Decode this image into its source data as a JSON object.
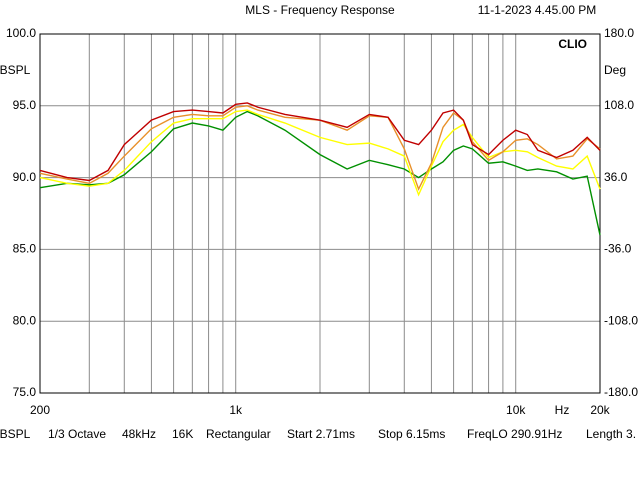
{
  "chart_data": {
    "type": "line",
    "title": "MLS - Frequency Response",
    "timestamp": "11-1-2023 4.45.00 PM",
    "brand": "CLIO",
    "ylabel": "dBSPL",
    "y2label": "Deg",
    "xlabel": "Hz",
    "xlog": true,
    "grid": true,
    "xlim": [
      200,
      20000
    ],
    "xticks": [
      200,
      {
        "value": 1000,
        "label": "1k"
      },
      {
        "value": 10000,
        "label": "10k"
      },
      {
        "value": 20000,
        "label": "20k"
      }
    ],
    "xgrid": [
      200,
      300,
      400,
      500,
      600,
      700,
      800,
      900,
      1000,
      2000,
      3000,
      4000,
      5000,
      6000,
      7000,
      8000,
      9000,
      10000,
      20000
    ],
    "ylim": [
      75,
      100
    ],
    "yticks": [
      {
        "value": 100,
        "label": "100.0"
      },
      {
        "value": 95,
        "label": "95.0"
      },
      {
        "value": 90,
        "label": "90.0"
      },
      {
        "value": 85,
        "label": "85.0"
      },
      {
        "value": 80,
        "label": "80.0"
      },
      {
        "value": 75,
        "label": "75.0"
      }
    ],
    "y2lim": [
      -180,
      180
    ],
    "y2ticks": [
      {
        "value": 180,
        "label": "180.0"
      },
      {
        "value": 108,
        "label": "108.0"
      },
      {
        "value": 36,
        "label": "36.0"
      },
      {
        "value": -36,
        "label": "-36.0"
      },
      {
        "value": -108,
        "label": "-108.0"
      },
      {
        "value": -180,
        "label": "-180.0"
      }
    ],
    "x": [
      200,
      250,
      300,
      350,
      400,
      500,
      600,
      700,
      800,
      900,
      1000,
      1100,
      1200,
      1500,
      2000,
      2500,
      3000,
      3500,
      4000,
      4500,
      5000,
      5500,
      6000,
      6500,
      7000,
      8000,
      9000,
      10000,
      11000,
      12000,
      14000,
      16000,
      18000,
      20000
    ],
    "series": [
      {
        "color": "#009000",
        "values": [
          89.3,
          89.6,
          89.5,
          89.6,
          90.2,
          91.8,
          93.4,
          93.8,
          93.6,
          93.3,
          94.2,
          94.6,
          94.3,
          93.3,
          91.6,
          90.6,
          91.2,
          90.9,
          90.6,
          90.0,
          90.6,
          91.1,
          91.9,
          92.2,
          92.0,
          91.0,
          91.1,
          90.8,
          90.5,
          90.6,
          90.4,
          89.9,
          90.1,
          86.0
        ]
      },
      {
        "color": "#ffff00",
        "values": [
          90.0,
          89.6,
          89.4,
          89.6,
          90.5,
          92.5,
          93.8,
          94.1,
          94.1,
          94.1,
          94.6,
          94.7,
          94.4,
          93.8,
          92.8,
          92.3,
          92.4,
          92.0,
          91.5,
          88.8,
          90.8,
          92.5,
          93.3,
          93.7,
          92.8,
          91.4,
          91.8,
          91.9,
          91.8,
          91.4,
          90.8,
          90.6,
          91.5,
          89.2
        ]
      },
      {
        "color": "#e8902a",
        "values": [
          90.3,
          89.9,
          89.6,
          90.3,
          91.5,
          93.4,
          94.2,
          94.4,
          94.3,
          94.3,
          94.9,
          95.0,
          94.7,
          94.2,
          94.0,
          93.3,
          94.3,
          94.2,
          92.0,
          89.2,
          91.0,
          93.5,
          94.5,
          94.0,
          92.5,
          91.2,
          91.8,
          92.6,
          92.7,
          92.3,
          91.3,
          91.5,
          92.7,
          92.0
        ]
      },
      {
        "color": "#c00000",
        "values": [
          90.5,
          90.0,
          89.8,
          90.5,
          92.3,
          94.0,
          94.6,
          94.7,
          94.6,
          94.5,
          95.1,
          95.2,
          94.9,
          94.4,
          94.0,
          93.5,
          94.4,
          94.2,
          92.6,
          92.3,
          93.3,
          94.5,
          94.7,
          94.0,
          92.3,
          91.6,
          92.6,
          93.3,
          93.0,
          91.9,
          91.4,
          91.9,
          92.8,
          91.9
        ]
      }
    ],
    "footer": [
      "dBSPL",
      "1/3 Octave",
      "48kHz",
      "16K",
      "Rectangular",
      "Start 2.71ms",
      "Stop 6.15ms",
      "FreqLO 290.91Hz",
      "Length 3."
    ]
  }
}
